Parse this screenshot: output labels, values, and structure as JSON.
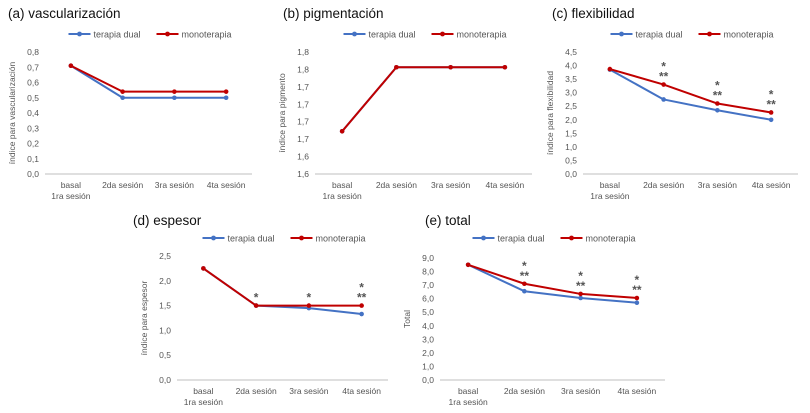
{
  "colors": {
    "dual": "#4472c4",
    "mono": "#c00000",
    "axis": "#bfbfbf",
    "text": "#555555"
  },
  "chart_data": [
    {
      "panel": "a",
      "type": "line",
      "title": "(a) vascularización",
      "ylabel": "índice para vascularización",
      "categories": [
        [
          "basal",
          "1ra sesión"
        ],
        [
          "2da sesión"
        ],
        [
          "3ra sesión"
        ],
        [
          "4ta sesión"
        ]
      ],
      "ylim": [
        0,
        0.8
      ],
      "yticks": [
        "0,0",
        "0,1",
        "0,2",
        "0,3",
        "0,4",
        "0,5",
        "0,6",
        "0,7",
        "0,8"
      ],
      "legend": "top",
      "series": [
        {
          "name": "terapia dual",
          "color": "#4472c4",
          "values": [
            0.71,
            0.5,
            0.5,
            0.5
          ]
        },
        {
          "name": "monoterapia",
          "color": "#c00000",
          "values": [
            0.71,
            0.54,
            0.54,
            0.54
          ]
        }
      ],
      "annotations": []
    },
    {
      "panel": "b",
      "type": "line",
      "title": "(b) pigmentación",
      "ylabel": "índice para pigmento",
      "categories": [
        [
          "basal",
          "1ra sesión"
        ],
        [
          "2da sesión"
        ],
        [
          "3ra sesión"
        ],
        [
          "4ta sesión"
        ]
      ],
      "ylim": [
        1.6,
        1.8
      ],
      "yticks": [
        "1,6",
        "1,6",
        "1,7",
        "1,7",
        "1,7",
        "1,7",
        "1,8",
        "1,8"
      ],
      "legend": "top",
      "series": [
        {
          "name": "terapia dual",
          "color": "#4472c4",
          "values": [
            1.67,
            1.775,
            1.775,
            1.775
          ]
        },
        {
          "name": "monoterapia",
          "color": "#c00000",
          "values": [
            1.67,
            1.775,
            1.775,
            1.775
          ]
        }
      ],
      "annotations": []
    },
    {
      "panel": "c",
      "type": "line",
      "title": "(c) flexibilidad",
      "ylabel": "índice para flexibilidad",
      "categories": [
        [
          "basal",
          "1ra sesión"
        ],
        [
          "2da sesión"
        ],
        [
          "3ra sesión"
        ],
        [
          "4ta sesión"
        ]
      ],
      "ylim": [
        0,
        4.5
      ],
      "yticks": [
        "0,0",
        "0,5",
        "1,0",
        "1,5",
        "2,0",
        "2,5",
        "3,0",
        "3,5",
        "4,0",
        "4,5"
      ],
      "legend": "top",
      "series": [
        {
          "name": "terapia dual",
          "color": "#4472c4",
          "values": [
            3.85,
            2.75,
            2.35,
            2.0
          ]
        },
        {
          "name": "monoterapia",
          "color": "#c00000",
          "values": [
            3.87,
            3.3,
            2.6,
            2.27
          ]
        }
      ],
      "annotations": [
        {
          "index": 1,
          "lines": [
            "*",
            "**"
          ]
        },
        {
          "index": 2,
          "lines": [
            "*",
            "**"
          ]
        },
        {
          "index": 3,
          "lines": [
            "*",
            "**"
          ]
        }
      ]
    },
    {
      "panel": "d",
      "type": "line",
      "title": "(d) espesor",
      "ylabel": "índice para espesor",
      "categories": [
        [
          "basal",
          "1ra sesión"
        ],
        [
          "2da sesión"
        ],
        [
          "3ra sesión"
        ],
        [
          "4ta sesión"
        ]
      ],
      "ylim": [
        0,
        2.5
      ],
      "yticks": [
        "0,0",
        "0,5",
        "1,0",
        "1,5",
        "2,0",
        "2,5"
      ],
      "legend": "top",
      "series": [
        {
          "name": "terapia dual",
          "color": "#4472c4",
          "values": [
            2.25,
            1.5,
            1.45,
            1.33
          ]
        },
        {
          "name": "monoterapia",
          "color": "#c00000",
          "values": [
            2.25,
            1.5,
            1.5,
            1.5
          ]
        }
      ],
      "annotations": [
        {
          "index": 1,
          "lines": [
            "*"
          ]
        },
        {
          "index": 2,
          "lines": [
            "*"
          ]
        },
        {
          "index": 3,
          "lines": [
            "*",
            "**"
          ]
        }
      ]
    },
    {
      "panel": "e",
      "type": "line",
      "title": "(e) total",
      "ylabel": "Total",
      "categories": [
        [
          "basal",
          "1ra sesión"
        ],
        [
          "2da sesión"
        ],
        [
          "3ra sesión"
        ],
        [
          "4ta sesión"
        ]
      ],
      "ylim": [
        0,
        9
      ],
      "yticks": [
        "0,0",
        "1,0",
        "2,0",
        "3,0",
        "4,0",
        "5,0",
        "6,0",
        "7,0",
        "8,0",
        "9,0"
      ],
      "legend": "top",
      "series": [
        {
          "name": "terapia dual",
          "color": "#4472c4",
          "values": [
            8.5,
            6.55,
            6.05,
            5.7
          ]
        },
        {
          "name": "monoterapia",
          "color": "#c00000",
          "values": [
            8.5,
            7.1,
            6.35,
            6.05
          ]
        }
      ],
      "annotations": [
        {
          "index": 1,
          "lines": [
            "*",
            "**"
          ]
        },
        {
          "index": 2,
          "lines": [
            "*",
            "**"
          ]
        },
        {
          "index": 3,
          "lines": [
            "*",
            "**"
          ]
        }
      ]
    }
  ]
}
